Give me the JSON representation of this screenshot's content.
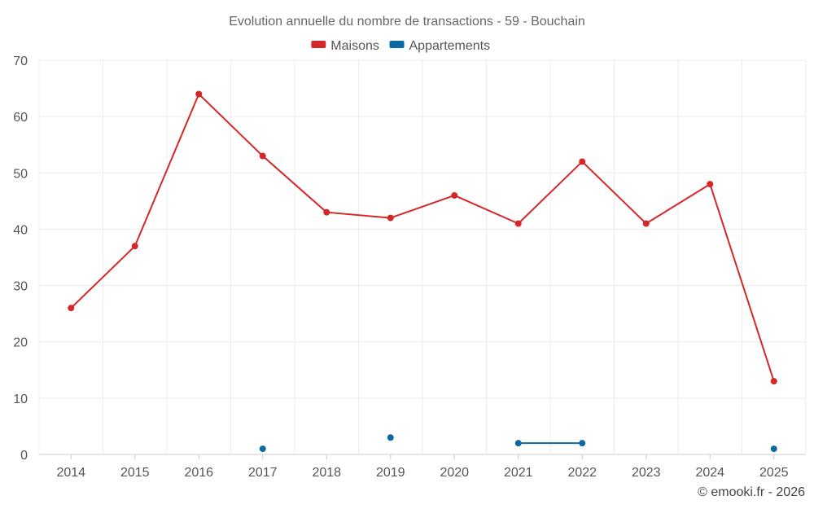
{
  "chart_data": {
    "type": "line",
    "title": "Evolution annuelle du nombre de transactions - 59 - Bouchain",
    "categories": [
      "2014",
      "2015",
      "2016",
      "2017",
      "2018",
      "2019",
      "2020",
      "2021",
      "2022",
      "2023",
      "2024",
      "2025"
    ],
    "ylim": [
      0,
      70
    ],
    "yticks": [
      0,
      10,
      20,
      30,
      40,
      50,
      60,
      70
    ],
    "grid": true,
    "legend_position": "top-center",
    "series": [
      {
        "name": "Maisons",
        "color": "#d62728",
        "values": [
          26,
          37,
          64,
          53,
          43,
          42,
          46,
          41,
          52,
          41,
          48,
          13
        ]
      },
      {
        "name": "Appartements",
        "color": "#0a6aa1",
        "values": [
          null,
          null,
          null,
          1,
          null,
          3,
          null,
          2,
          2,
          null,
          null,
          1
        ]
      }
    ]
  },
  "credit": "© emooki.fr - 2026"
}
